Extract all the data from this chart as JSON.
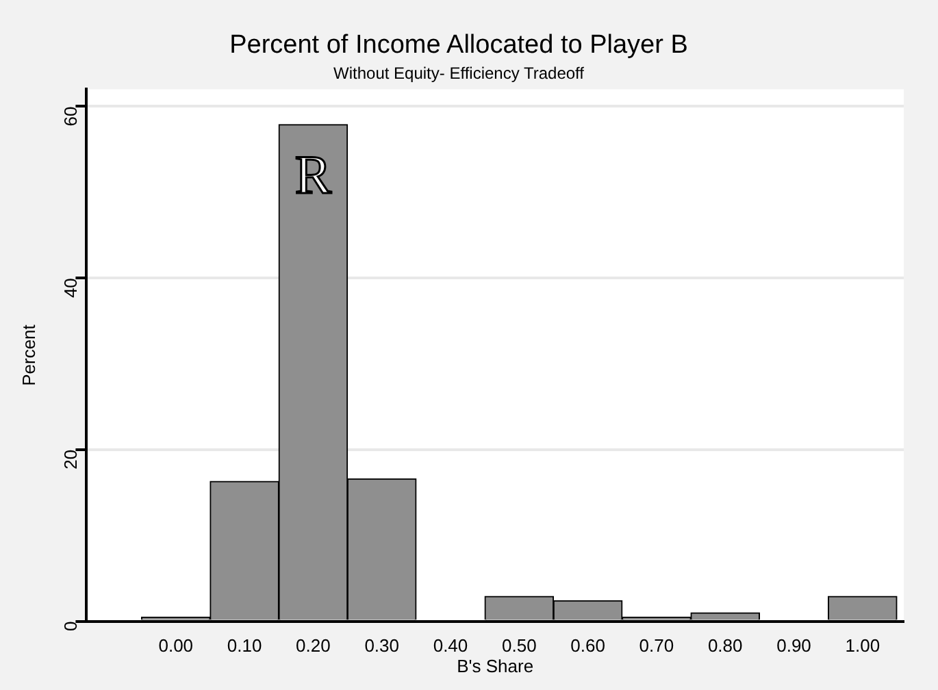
{
  "chart_data": {
    "type": "histogram",
    "title": "Percent of Income Allocated to Player B",
    "subtitle": "Without Equity- Efficiency Tradeoff",
    "xlabel": "B's Share",
    "ylabel": "Percent",
    "bins": [
      -0.05,
      0.05,
      0.15,
      0.25,
      0.35,
      0.45,
      0.55,
      0.65,
      0.75,
      0.85,
      0.95,
      1.05
    ],
    "values": [
      0.5,
      16.3,
      57.9,
      16.6,
      0,
      2.9,
      2.4,
      0.5,
      1.0,
      0,
      2.9
    ],
    "color": "#8f8f8f",
    "xlim": [
      -0.13,
      1.06
    ],
    "xticks": [
      {
        "value": 0,
        "label": "0.00"
      },
      {
        "value": 0.1,
        "label": "0.10"
      },
      {
        "value": 0.2,
        "label": "0.20"
      },
      {
        "value": 0.3,
        "label": "0.30"
      },
      {
        "value": 0.4,
        "label": "0.40"
      },
      {
        "value": 0.5,
        "label": "0.50"
      },
      {
        "value": 0.6,
        "label": "0.60"
      },
      {
        "value": 0.7,
        "label": "0.70"
      },
      {
        "value": 0.8,
        "label": "0.80"
      },
      {
        "value": 0.9,
        "label": "0.90"
      },
      {
        "value": 1,
        "label": "1.00"
      }
    ],
    "ylim": [
      0,
      62
    ],
    "yticks": [
      0,
      20,
      40,
      60
    ],
    "grid": "y",
    "legend": false,
    "annotations": [
      "R"
    ]
  }
}
